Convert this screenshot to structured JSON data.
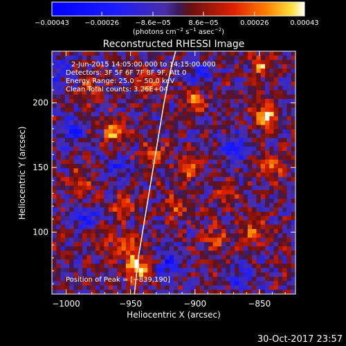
{
  "chart_data": {
    "type": "heatmap",
    "title": "Reconstructed RHESSI Image",
    "xlabel": "Heliocentric X (arcsec)",
    "ylabel": "Heliocentric Y (arcsec)",
    "xlim": [
      -1011,
      -822
    ],
    "ylim": [
      52,
      240
    ],
    "x_ticks": [
      -1000,
      -950,
      -900,
      -850
    ],
    "x_tick_labels": [
      "−1000",
      "−950",
      "−900",
      "−850"
    ],
    "y_ticks": [
      100,
      150,
      200
    ],
    "y_tick_labels": [
      "100",
      "150",
      "200"
    ],
    "colorbar": {
      "range": [
        -0.00043,
        0.00043
      ],
      "tick_values": [
        -0.00043,
        -0.00026,
        -8.6e-05,
        8.6e-05,
        0.00026,
        0.00043
      ],
      "tick_labels": [
        "−0.00043",
        "−0.00026",
        "−8.6e−05",
        "8.6e−05",
        "0.00026",
        "0.00043"
      ],
      "unit_main": "(photons cm",
      "unit_sup1": "−2",
      "unit_mid1": " s",
      "unit_sup2": "−1",
      "unit_mid2": " asec",
      "unit_sup3": "−2",
      "unit_end": ")"
    },
    "annotations": [
      "2‑Jun‑2015 14:05:00.000 to 14:15:00.000",
      "Detectors: 3F 5F 6F 7F 8F 9F, Att 0",
      "Energy Range: 25.0 − 50.0 keV",
      "Clean     Total counts: 3.26E+04"
    ],
    "peak_label": "Position of Peak = [−839,190]",
    "peak": [
      -839,
      190
    ],
    "limb_curve": [
      [
        -947,
        52
      ],
      [
        -944,
        80
      ],
      [
        -939,
        110
      ],
      [
        -934,
        140
      ],
      [
        -929,
        170
      ],
      [
        -924,
        200
      ],
      [
        -919,
        225
      ],
      [
        -915,
        240
      ]
    ],
    "hot_spots": [
      {
        "x": -945,
        "y": 72,
        "v": 0.9
      },
      {
        "x": -952,
        "y": 88,
        "v": 0.5
      },
      {
        "x": -962,
        "y": 178,
        "v": 0.7
      },
      {
        "x": -955,
        "y": 120,
        "v": 0.45
      },
      {
        "x": -930,
        "y": 160,
        "v": 0.5
      },
      {
        "x": -905,
        "y": 150,
        "v": 0.55
      },
      {
        "x": -900,
        "y": 200,
        "v": 0.55
      },
      {
        "x": -875,
        "y": 130,
        "v": 0.5
      },
      {
        "x": -885,
        "y": 95,
        "v": 0.45
      },
      {
        "x": -845,
        "y": 190,
        "v": 0.95
      },
      {
        "x": -848,
        "y": 230,
        "v": 0.6
      },
      {
        "x": -840,
        "y": 150,
        "v": 0.55
      },
      {
        "x": -855,
        "y": 100,
        "v": 0.5
      },
      {
        "x": -990,
        "y": 140,
        "v": 0.4
      },
      {
        "x": -980,
        "y": 210,
        "v": 0.4
      },
      {
        "x": -970,
        "y": 95,
        "v": 0.35
      },
      {
        "x": -915,
        "y": 120,
        "v": 0.45
      },
      {
        "x": -935,
        "y": 215,
        "v": 0.5
      }
    ],
    "cold_spots": [
      {
        "x": -995,
        "y": 180,
        "v": -0.6
      },
      {
        "x": -985,
        "y": 110,
        "v": -0.55
      },
      {
        "x": -920,
        "y": 75,
        "v": -0.5
      },
      {
        "x": -870,
        "y": 165,
        "v": -0.5
      },
      {
        "x": -1005,
        "y": 225,
        "v": -0.45
      },
      {
        "x": -895,
        "y": 225,
        "v": -0.45
      },
      {
        "x": -960,
        "y": 150,
        "v": -0.4
      },
      {
        "x": -865,
        "y": 65,
        "v": -0.4
      }
    ]
  },
  "footer": {
    "timestamp": "30‑Oct‑2017 23:57"
  }
}
